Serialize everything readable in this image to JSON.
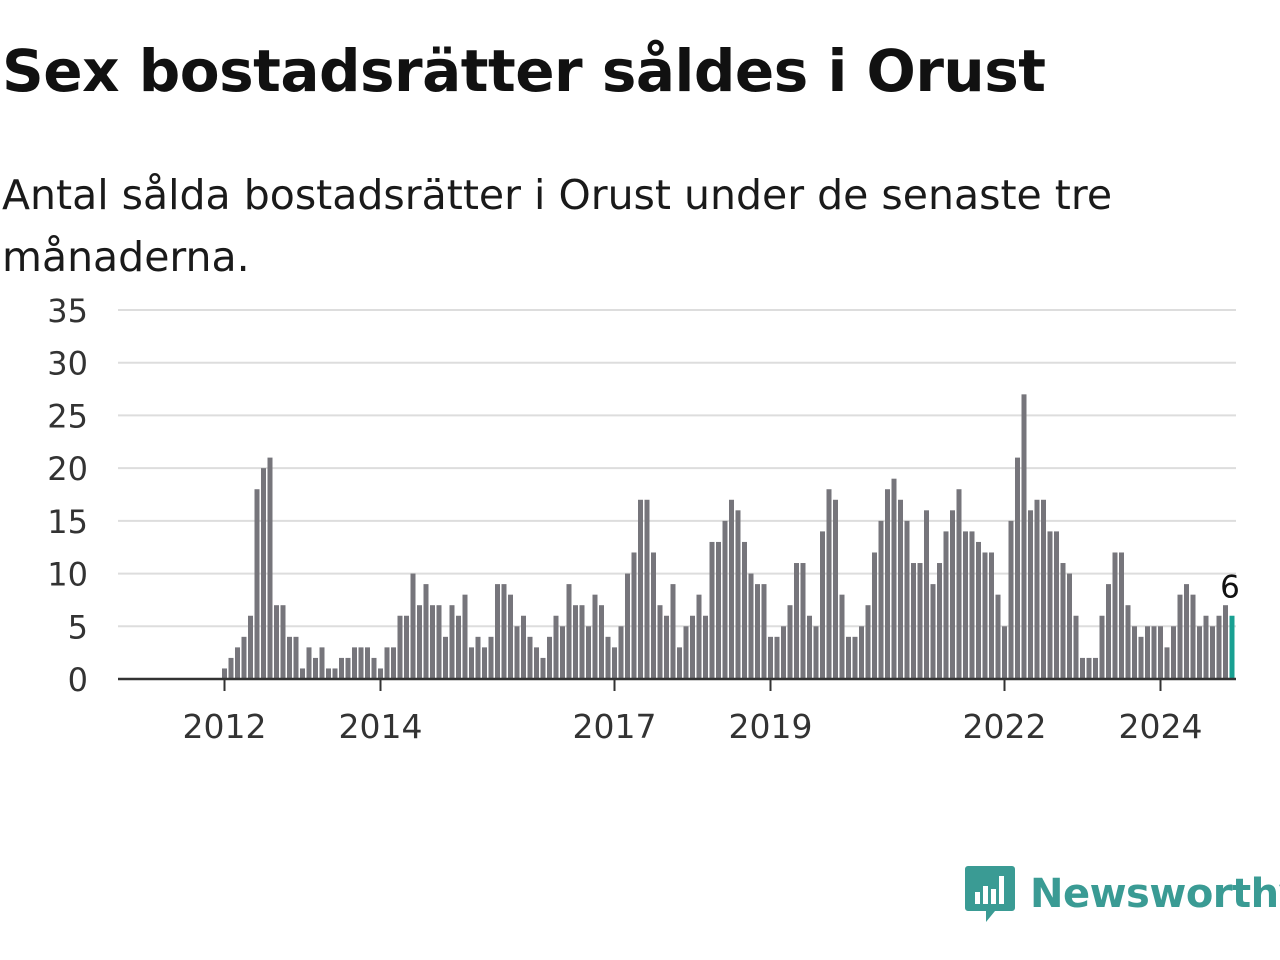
{
  "title": "Sex bostadsrätter såldes i Orust",
  "subtitle": "Antal sålda bostadsrätter i Orust under de senaste tre månaderna.",
  "brand": {
    "name": "Newsworthy",
    "color": "#3a9b94",
    "icon": "newsworthy-bar-chart-icon"
  },
  "colors": {
    "bar": "#76757b",
    "highlight": "#19a092",
    "grid": "#dddddd",
    "axis": "#333333"
  },
  "chart_data": {
    "type": "bar",
    "title": "Sex bostadsrätter såldes i Orust",
    "subtitle": "Antal sålda bostadsrätter i Orust under de senaste tre månaderna.",
    "ylim": [
      0,
      35
    ],
    "yticks": [
      0,
      5,
      10,
      15,
      20,
      25,
      30,
      35
    ],
    "xticks": [
      {
        "label": "2012",
        "index": 8
      },
      {
        "label": "2014",
        "index": 32
      },
      {
        "label": "2017",
        "index": 68
      },
      {
        "label": "2019",
        "index": 92
      },
      {
        "label": "2022",
        "index": 128
      },
      {
        "label": "2024",
        "index": 152
      }
    ],
    "grid": true,
    "highlight": {
      "index": 163,
      "label": "6"
    },
    "values": [
      0,
      0,
      0,
      0,
      0,
      0,
      0,
      0,
      1,
      2,
      3,
      4,
      6,
      18,
      20,
      21,
      7,
      7,
      4,
      4,
      1,
      3,
      2,
      3,
      1,
      1,
      2,
      2,
      3,
      3,
      3,
      2,
      1,
      3,
      3,
      6,
      6,
      10,
      7,
      9,
      7,
      7,
      4,
      7,
      6,
      8,
      3,
      4,
      3,
      4,
      9,
      9,
      8,
      5,
      6,
      4,
      3,
      2,
      4,
      6,
      5,
      9,
      7,
      7,
      5,
      8,
      7,
      4,
      3,
      5,
      10,
      12,
      17,
      17,
      12,
      7,
      6,
      9,
      3,
      5,
      6,
      8,
      6,
      13,
      13,
      15,
      17,
      16,
      13,
      10,
      9,
      9,
      4,
      4,
      5,
      7,
      11,
      11,
      6,
      5,
      14,
      18,
      17,
      8,
      4,
      4,
      5,
      7,
      12,
      15,
      18,
      19,
      17,
      15,
      11,
      11,
      16,
      9,
      11,
      14,
      16,
      18,
      14,
      14,
      13,
      12,
      12,
      8,
      5,
      15,
      21,
      27,
      16,
      17,
      17,
      14,
      14,
      11,
      10,
      6,
      2,
      2,
      2,
      6,
      9,
      12,
      12,
      7,
      5,
      4,
      5,
      5,
      5,
      3,
      5,
      8,
      9,
      8,
      5,
      6,
      5,
      6,
      7,
      6
    ]
  }
}
